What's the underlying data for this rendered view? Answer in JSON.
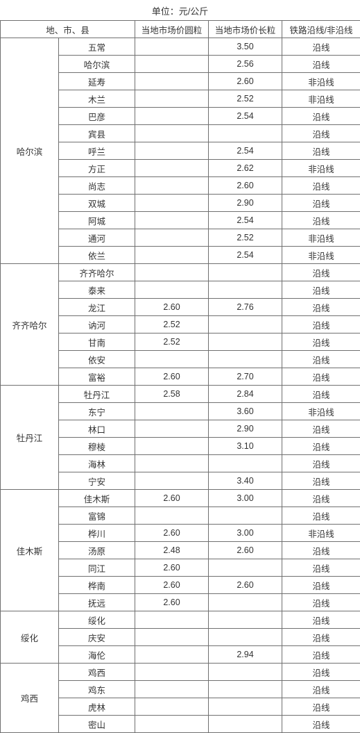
{
  "unit_label": "单位：元/公斤",
  "headers": {
    "region": "地、市、县",
    "price_round": "当地市场价圆粒",
    "price_long": "当地市场价长粒",
    "railway": "铁路沿线/非沿线"
  },
  "groups": [
    {
      "region": "哈尔滨",
      "rows": [
        {
          "county": "五常",
          "p1": "",
          "p2": "3.50",
          "rail": "沿线"
        },
        {
          "county": "哈尔滨",
          "p1": "",
          "p2": "2.56",
          "rail": "沿线"
        },
        {
          "county": "延寿",
          "p1": "",
          "p2": "2.60",
          "rail": "非沿线"
        },
        {
          "county": "木兰",
          "p1": "",
          "p2": "2.52",
          "rail": "非沿线"
        },
        {
          "county": "巴彦",
          "p1": "",
          "p2": "2.54",
          "rail": "沿线"
        },
        {
          "county": "宾县",
          "p1": "",
          "p2": "",
          "rail": "沿线"
        },
        {
          "county": "呼兰",
          "p1": "",
          "p2": "2.54",
          "rail": "沿线"
        },
        {
          "county": "方正",
          "p1": "",
          "p2": "2.62",
          "rail": "非沿线"
        },
        {
          "county": "尚志",
          "p1": "",
          "p2": "2.60",
          "rail": "沿线"
        },
        {
          "county": "双城",
          "p1": "",
          "p2": "2.90",
          "rail": "沿线"
        },
        {
          "county": "阿城",
          "p1": "",
          "p2": "2.54",
          "rail": "沿线"
        },
        {
          "county": "通河",
          "p1": "",
          "p2": "2.52",
          "rail": "非沿线"
        },
        {
          "county": "依兰",
          "p1": "",
          "p2": "2.54",
          "rail": "非沿线"
        }
      ]
    },
    {
      "region": "齐齐哈尔",
      "rows": [
        {
          "county": "齐齐哈尔",
          "p1": "",
          "p2": "",
          "rail": "沿线"
        },
        {
          "county": "泰来",
          "p1": "",
          "p2": "",
          "rail": "沿线"
        },
        {
          "county": "龙江",
          "p1": "2.60",
          "p2": "2.76",
          "rail": "沿线"
        },
        {
          "county": "讷河",
          "p1": "2.52",
          "p2": "",
          "rail": "沿线"
        },
        {
          "county": "甘南",
          "p1": "2.52",
          "p2": "",
          "rail": "沿线"
        },
        {
          "county": "依安",
          "p1": "",
          "p2": "",
          "rail": "沿线"
        },
        {
          "county": "富裕",
          "p1": "2.60",
          "p2": "2.70",
          "rail": "沿线"
        }
      ]
    },
    {
      "region": "牡丹江",
      "rows": [
        {
          "county": "牡丹江",
          "p1": "2.58",
          "p2": "2.84",
          "rail": "沿线"
        },
        {
          "county": "东宁",
          "p1": "",
          "p2": "3.60",
          "rail": "非沿线"
        },
        {
          "county": "林口",
          "p1": "",
          "p2": "2.90",
          "rail": "沿线"
        },
        {
          "county": "穆棱",
          "p1": "",
          "p2": "3.10",
          "rail": "沿线"
        },
        {
          "county": "海林",
          "p1": "",
          "p2": "",
          "rail": "沿线"
        },
        {
          "county": "宁安",
          "p1": "",
          "p2": "3.40",
          "rail": "沿线"
        }
      ]
    },
    {
      "region": "佳木斯",
      "rows": [
        {
          "county": "佳木斯",
          "p1": "2.60",
          "p2": "3.00",
          "rail": "沿线"
        },
        {
          "county": "富锦",
          "p1": "",
          "p2": "",
          "rail": "沿线"
        },
        {
          "county": "桦川",
          "p1": "2.60",
          "p2": "3.00",
          "rail": "非沿线"
        },
        {
          "county": "汤原",
          "p1": "2.48",
          "p2": "2.60",
          "rail": "沿线"
        },
        {
          "county": "同江",
          "p1": "2.60",
          "p2": "",
          "rail": "沿线"
        },
        {
          "county": "桦南",
          "p1": "2.60",
          "p2": "2.60",
          "rail": "沿线"
        },
        {
          "county": "抚远",
          "p1": "2.60",
          "p2": "",
          "rail": "沿线"
        }
      ]
    },
    {
      "region": "绥化",
      "rows": [
        {
          "county": "绥化",
          "p1": "",
          "p2": "",
          "rail": "沿线"
        },
        {
          "county": "庆安",
          "p1": "",
          "p2": "",
          "rail": "沿线"
        },
        {
          "county": "海伦",
          "p1": "",
          "p2": "2.94",
          "rail": "沿线"
        }
      ]
    },
    {
      "region": "鸡西",
      "rows": [
        {
          "county": "鸡西",
          "p1": "",
          "p2": "",
          "rail": "沿线"
        },
        {
          "county": "鸡东",
          "p1": "",
          "p2": "",
          "rail": "沿线"
        },
        {
          "county": "虎林",
          "p1": "",
          "p2": "",
          "rail": "沿线"
        },
        {
          "county": "密山",
          "p1": "",
          "p2": "",
          "rail": "沿线"
        }
      ]
    }
  ]
}
